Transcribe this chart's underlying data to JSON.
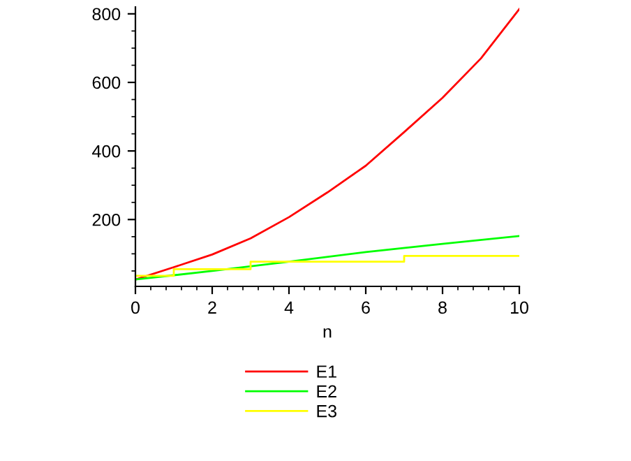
{
  "chart_data": {
    "type": "line",
    "xlabel": "n",
    "xlim": [
      0,
      10
    ],
    "ylim": [
      5,
      820
    ],
    "xticks": [
      0,
      2,
      4,
      6,
      8,
      10
    ],
    "yticks": [
      200,
      400,
      600,
      800
    ],
    "grid": false,
    "legend": "bottom",
    "marker": "none",
    "line_style": "solid",
    "series": [
      {
        "name": "E1",
        "color": "#ff0000",
        "x": [
          0,
          1,
          2,
          3,
          4,
          5,
          6,
          7,
          8,
          9,
          10
        ],
        "values": [
          25,
          61,
          98,
          145,
          207,
          279,
          357,
          455,
          555,
          670,
          814
        ]
      },
      {
        "name": "E2",
        "color": "#00ff00",
        "x": [
          0,
          2,
          4,
          6,
          8,
          10
        ],
        "values": [
          25,
          50,
          77,
          105,
          129,
          152
        ]
      },
      {
        "name": "E3",
        "color": "#ffff00",
        "type": "step",
        "x": [
          0,
          1,
          3,
          7,
          10
        ],
        "values": [
          36,
          55,
          77,
          94,
          94
        ]
      }
    ]
  }
}
